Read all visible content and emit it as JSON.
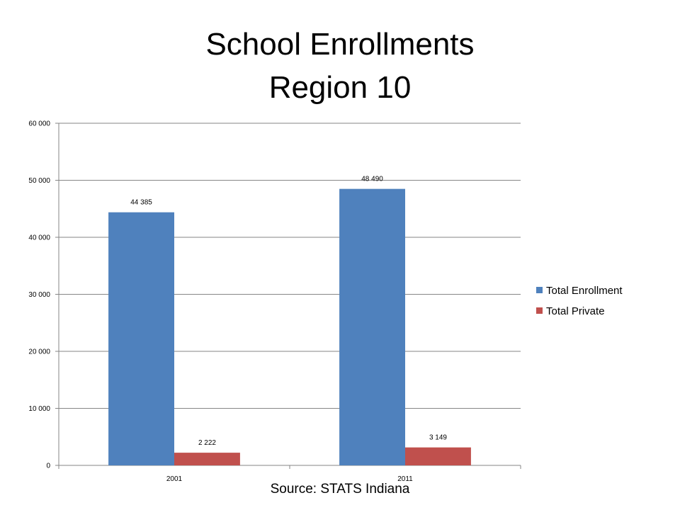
{
  "page": {
    "title_line1": "School Enrollments",
    "title_line2": "Region 10",
    "source": "Source:  STATS Indiana"
  },
  "chart_data": {
    "type": "bar",
    "title": "School Enrollments Region 10",
    "categories": [
      "2001",
      "2011"
    ],
    "series": [
      {
        "name": "Total Enrollment",
        "values": [
          44385,
          48490
        ],
        "labels": [
          "44 385",
          "48 490"
        ],
        "color": "#4F81BD"
      },
      {
        "name": "Total Private",
        "values": [
          2222,
          3149
        ],
        "labels": [
          "2 222",
          "3 149"
        ],
        "color": "#C0504D"
      }
    ],
    "yticks": [
      0,
      10000,
      20000,
      30000,
      40000,
      50000,
      60000
    ],
    "ytick_labels": [
      "0",
      "10 000",
      "20 000",
      "30 000",
      "40 000",
      "50 000",
      "60 000"
    ],
    "ylim": [
      0,
      60000
    ],
    "xlabel": "",
    "ylabel": "",
    "grid": true,
    "legend_position": "right"
  }
}
